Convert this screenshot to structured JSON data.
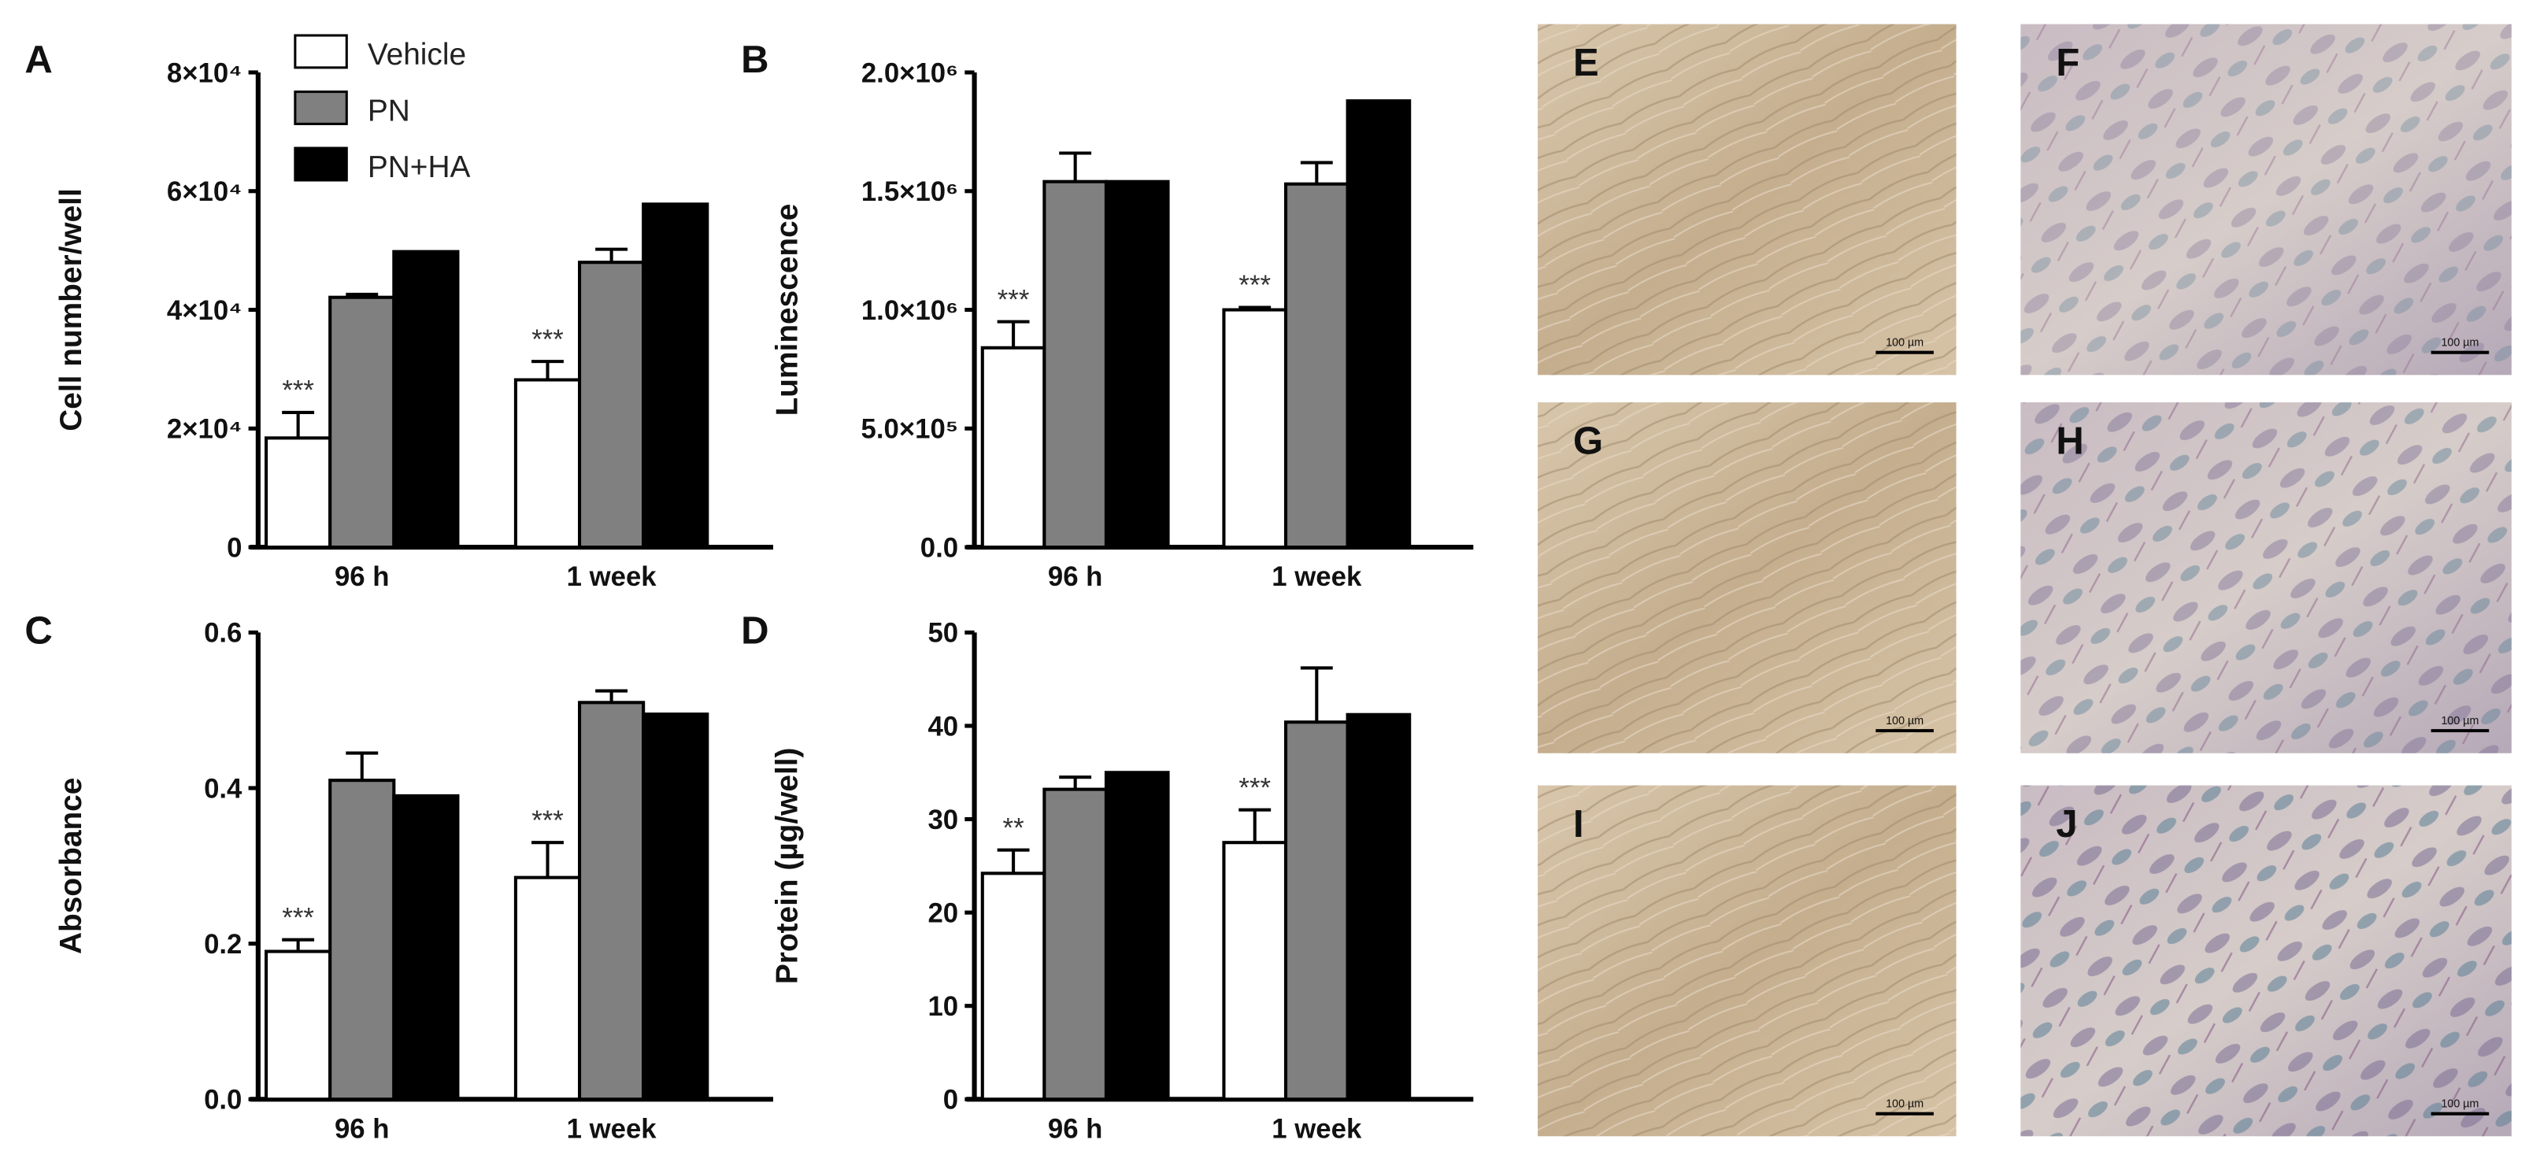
{
  "legend": [
    {
      "name": "Vehicle",
      "color": "#ffffff"
    },
    {
      "name": "PN",
      "color": "#808080"
    },
    {
      "name": "PN+HA",
      "color": "#000000"
    }
  ],
  "chart_data": [
    {
      "panel": "A",
      "type": "bar",
      "ylabel": "Cell number/well",
      "categories": [
        "96 h",
        "1 week"
      ],
      "ylim": [
        0,
        80000
      ],
      "yticks": [
        0,
        20000,
        40000,
        60000,
        80000
      ],
      "ytick_labels": [
        "0",
        "2×10⁴",
        "4×10⁴",
        "6×10⁴",
        "8×10⁴"
      ],
      "series": [
        {
          "name": "Vehicle",
          "values": [
            18400,
            28200
          ],
          "errors": [
            4300,
            3100
          ]
        },
        {
          "name": "PN",
          "values": [
            42100,
            48000
          ],
          "errors": [
            500,
            2200
          ]
        },
        {
          "name": "PN+HA",
          "values": [
            49800,
            57800
          ],
          "errors": [
            0,
            0
          ]
        }
      ],
      "annotations": [
        "***",
        "***"
      ]
    },
    {
      "panel": "B",
      "type": "bar",
      "ylabel": "Luminescence",
      "categories": [
        "96 h",
        "1 week"
      ],
      "ylim": [
        0,
        2000000
      ],
      "yticks": [
        0,
        500000,
        1000000,
        1500000,
        2000000
      ],
      "ytick_labels": [
        "0.0",
        "5.0×10⁵",
        "1.0×10⁶",
        "1.5×10⁶",
        "2.0×10⁶"
      ],
      "series": [
        {
          "name": "Vehicle",
          "values": [
            840000,
            1000000
          ],
          "errors": [
            110000,
            10000
          ]
        },
        {
          "name": "PN",
          "values": [
            1540000,
            1530000
          ],
          "errors": [
            120000,
            90000
          ]
        },
        {
          "name": "PN+HA",
          "values": [
            1540000,
            1880000
          ],
          "errors": [
            0,
            0
          ]
        }
      ],
      "annotations": [
        "***",
        "***"
      ]
    },
    {
      "panel": "C",
      "type": "bar",
      "ylabel": "Absorbance",
      "categories": [
        "96 h",
        "1 week"
      ],
      "ylim": [
        0,
        0.6
      ],
      "yticks": [
        0,
        0.2,
        0.4,
        0.6
      ],
      "ytick_labels": [
        "0.0",
        "0.2",
        "0.4",
        "0.6"
      ],
      "series": [
        {
          "name": "Vehicle",
          "values": [
            0.19,
            0.285
          ],
          "errors": [
            0.015,
            0.045
          ]
        },
        {
          "name": "PN",
          "values": [
            0.41,
            0.51
          ],
          "errors": [
            0.035,
            0.015
          ]
        },
        {
          "name": "PN+HA",
          "values": [
            0.39,
            0.495
          ],
          "errors": [
            0,
            0
          ]
        }
      ],
      "annotations": [
        "***",
        "***"
      ]
    },
    {
      "panel": "D",
      "type": "bar",
      "ylabel": "Protein (µg/well)",
      "categories": [
        "96 h",
        "1 week"
      ],
      "ylim": [
        0,
        50
      ],
      "yticks": [
        0,
        10,
        20,
        30,
        40,
        50
      ],
      "ytick_labels": [
        "0",
        "10",
        "20",
        "30",
        "40",
        "50"
      ],
      "series": [
        {
          "name": "Vehicle",
          "values": [
            24.2,
            27.5
          ],
          "errors": [
            2.5,
            3.5
          ]
        },
        {
          "name": "PN",
          "values": [
            33.2,
            40.4
          ],
          "errors": [
            1.3,
            5.8
          ]
        },
        {
          "name": "PN+HA",
          "values": [
            35,
            41.2
          ],
          "errors": [
            0,
            0
          ]
        }
      ],
      "annotations": [
        "**",
        "***"
      ]
    }
  ],
  "images": [
    {
      "panel": "E",
      "scale_bar": "100 µm",
      "stain": "unstained"
    },
    {
      "panel": "F",
      "scale_bar": "100 µm",
      "stain": "stained"
    },
    {
      "panel": "G",
      "scale_bar": "100 µm",
      "stain": "unstained"
    },
    {
      "panel": "H",
      "scale_bar": "100 µm",
      "stain": "stained"
    },
    {
      "panel": "I",
      "scale_bar": "100 µm",
      "stain": "unstained"
    },
    {
      "panel": "J",
      "scale_bar": "100 µm",
      "stain": "stained"
    }
  ]
}
